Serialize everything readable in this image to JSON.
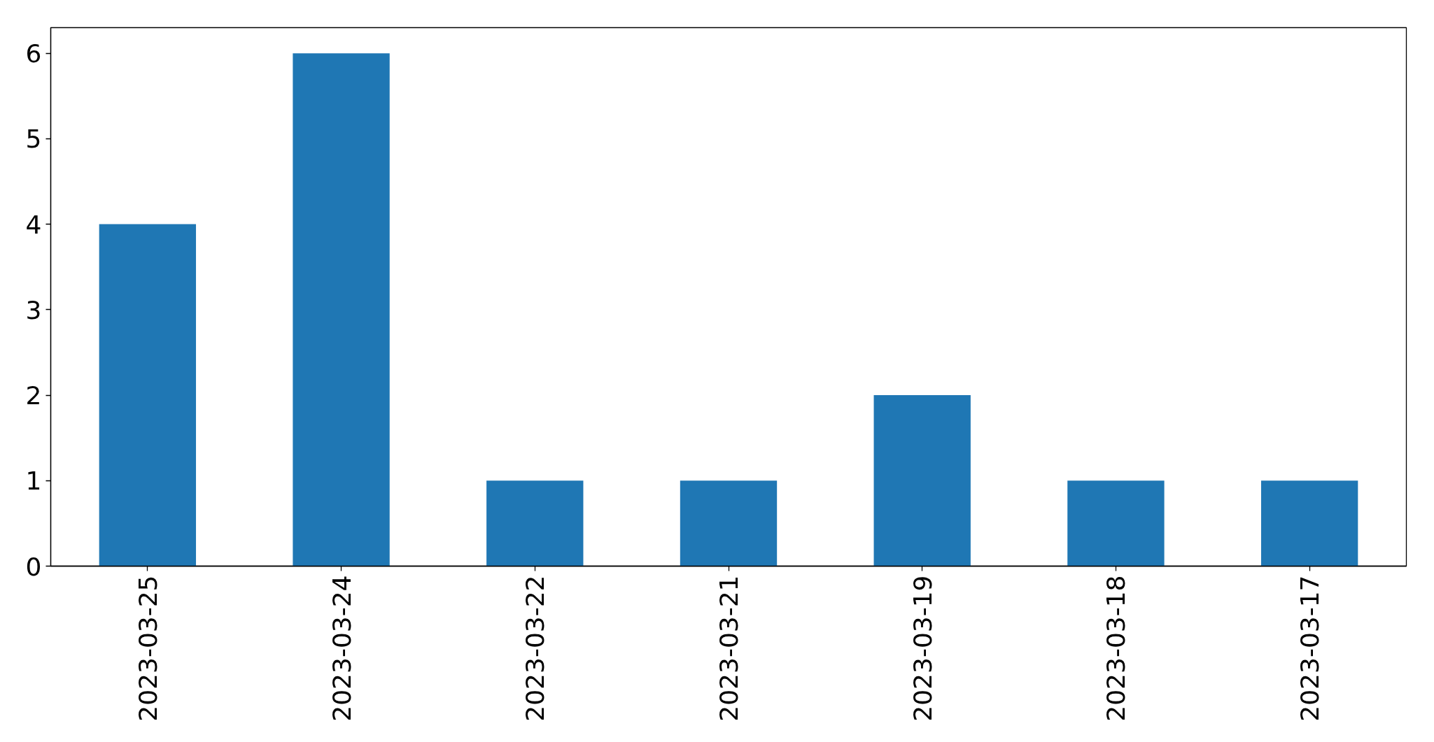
{
  "chart_data": {
    "type": "bar",
    "categories": [
      "2023-03-25",
      "2023-03-24",
      "2023-03-22",
      "2023-03-21",
      "2023-03-19",
      "2023-03-18",
      "2023-03-17"
    ],
    "values": [
      4,
      6,
      1,
      1,
      2,
      1,
      1
    ],
    "color": "#1f77b4",
    "ylim": [
      0,
      6.3
    ],
    "yticks": [
      0,
      1,
      2,
      3,
      4,
      5,
      6
    ]
  }
}
